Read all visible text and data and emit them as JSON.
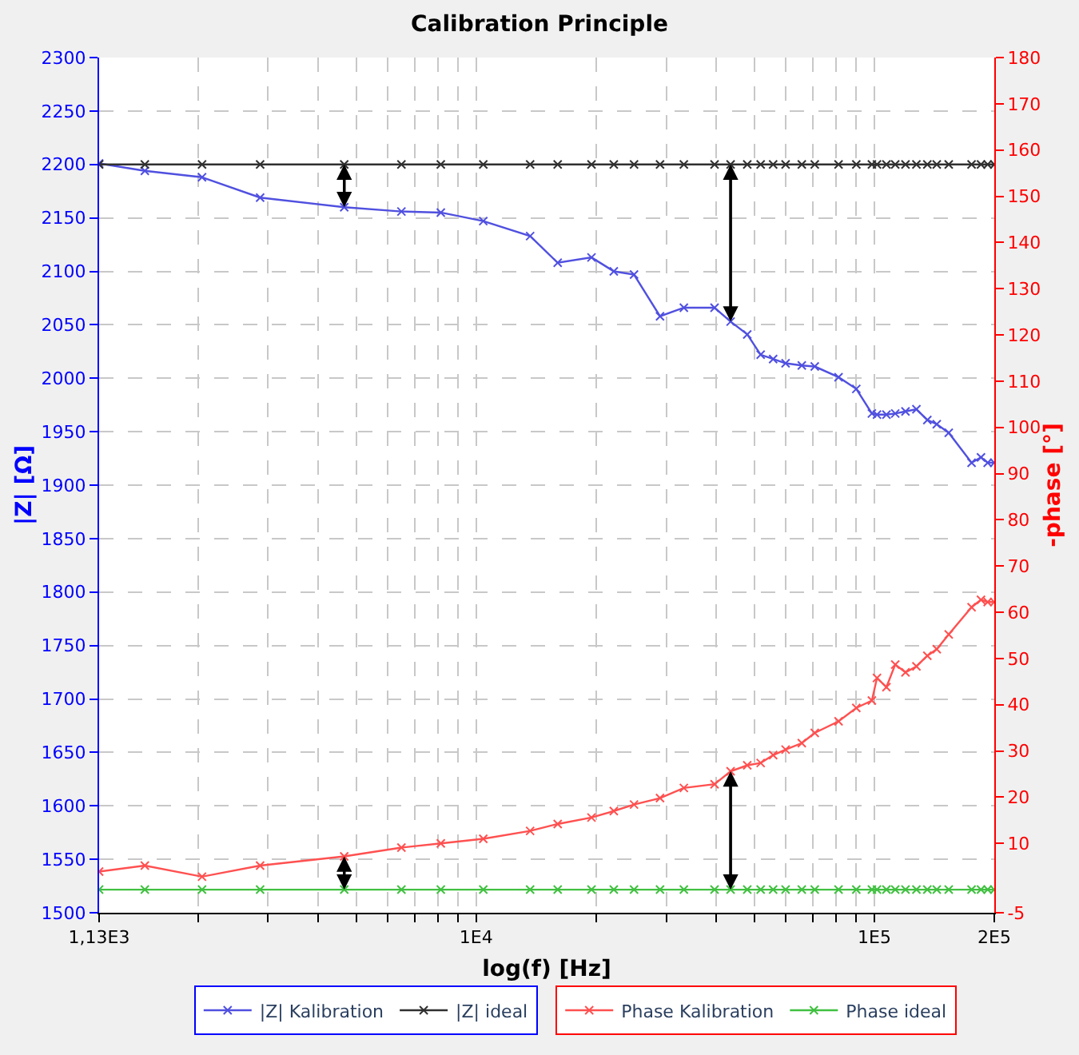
{
  "chart_data": {
    "type": "line",
    "title": "Calibration Principle",
    "xlabel": "log(f) [Hz]",
    "ylabel": "|Z| [Ω]",
    "y2label": "-phase [°]",
    "x": [
      1130,
      1472,
      2049,
      2867,
      4663,
      6490,
      8151,
      10420,
      13660,
      16020,
      19480,
      22160,
      24910,
      28950,
      33230,
      39680,
      43540,
      47940,
      51810,
      55680,
      59840,
      65720,
      70830,
      81280,
      90060,
      98560,
      101500,
      107200,
      112800,
      119700,
      127500,
      135800,
      143400,
      153700,
      175400,
      185200,
      192500,
      200000
    ],
    "series": [
      {
        "name": "|Z| Kalibration",
        "color": "#5050e0",
        "values": [
          2201,
          2194,
          2188,
          2169,
          2160,
          2156,
          2155,
          2147,
          2133,
          2108,
          2113,
          2100,
          2097,
          2058,
          2066,
          2066,
          2053,
          2041,
          2022,
          2018,
          2014,
          2012,
          2011,
          2001,
          1990,
          1967,
          1966,
          1966,
          1967,
          1969,
          1971,
          1961,
          1957,
          1949,
          1921,
          1926,
          1921,
          1921
        ]
      },
      {
        "name": "|Z| ideal",
        "color": "#303030",
        "values": [
          2200,
          2200,
          2200,
          2200,
          2200,
          2200,
          2200,
          2200,
          2200,
          2200,
          2200,
          2200,
          2200,
          2200,
          2200,
          2200,
          2200,
          2200,
          2200,
          2200,
          2200,
          2200,
          2200,
          2200,
          2200,
          2200,
          2200,
          2200,
          2200,
          2200,
          2200,
          2200,
          2200,
          2200,
          2200,
          2200,
          2200,
          2200
        ]
      },
      {
        "name": "Phase Kalibration",
        "color": "#ff5050",
        "axis": "y2",
        "values": [
          3.9,
          5.2,
          2.8,
          5.2,
          7.2,
          9.1,
          10,
          11,
          12.7,
          14.2,
          15.6,
          17,
          18.4,
          19.8,
          22,
          22.8,
          25.6,
          26.9,
          27.4,
          29.1,
          30.3,
          31.7,
          33.9,
          36.4,
          39.3,
          40.9,
          45.8,
          43.8,
          48.7,
          47,
          48.3,
          50.6,
          52,
          55.2,
          61.1,
          62.7,
          62.2,
          62.2
        ]
      },
      {
        "name": "Phase ideal",
        "color": "#40c040",
        "axis": "y2",
        "values": [
          0,
          0,
          0,
          0,
          0,
          0,
          0,
          0,
          0,
          0,
          0,
          0,
          0,
          0,
          0,
          0,
          0,
          0,
          0,
          0,
          0,
          0,
          0,
          0,
          0,
          0,
          0,
          0,
          0,
          0,
          0,
          0,
          0,
          0,
          0,
          0,
          0,
          0
        ]
      }
    ],
    "log": "x",
    "xlim": [
      1130,
      200000
    ],
    "xticks": [
      {
        "value": 1130,
        "label": "1,13E3"
      },
      {
        "value": 2000,
        "label": null
      },
      {
        "value": 3000,
        "label": null
      },
      {
        "value": 4000,
        "label": null
      },
      {
        "value": 5000,
        "label": null
      },
      {
        "value": 6000,
        "label": null
      },
      {
        "value": 7000,
        "label": null
      },
      {
        "value": 8000,
        "label": null
      },
      {
        "value": 9000,
        "label": null
      },
      {
        "value": 10000,
        "label": "1E4"
      },
      {
        "value": 20000,
        "label": null
      },
      {
        "value": 30000,
        "label": null
      },
      {
        "value": 40000,
        "label": null
      },
      {
        "value": 50000,
        "label": null
      },
      {
        "value": 60000,
        "label": null
      },
      {
        "value": 70000,
        "label": null
      },
      {
        "value": 80000,
        "label": null
      },
      {
        "value": 90000,
        "label": null
      },
      {
        "value": 100000,
        "label": "1E5"
      },
      {
        "value": 200000,
        "label": "2E5"
      }
    ],
    "ylim": [
      1500,
      2300
    ],
    "yticks": [
      1500,
      1550,
      1600,
      1650,
      1700,
      1750,
      1800,
      1850,
      1900,
      1950,
      2000,
      2050,
      2100,
      2150,
      2200,
      2250,
      2300
    ],
    "y2lim": [
      -5,
      180
    ],
    "y2ticks": [
      -5,
      10,
      20,
      30,
      40,
      50,
      60,
      70,
      80,
      90,
      100,
      110,
      120,
      130,
      140,
      150,
      160,
      170,
      180
    ],
    "grid": true,
    "legend": "bottom",
    "marker": "cross",
    "line_style": "solid"
  }
}
